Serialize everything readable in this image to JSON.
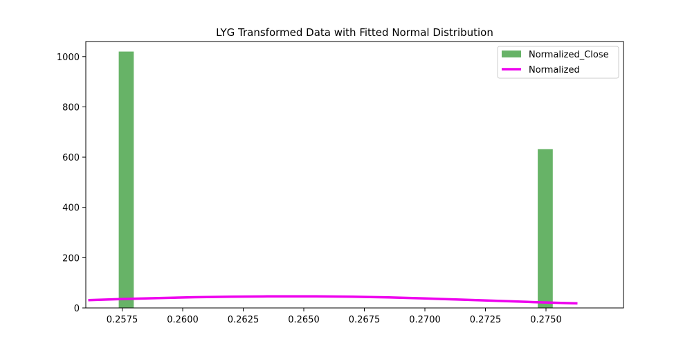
{
  "chart_data": {
    "type": "bar",
    "title": "LYG Transformed Data with Fitted Normal Distribution",
    "xlabel": "",
    "ylabel": "",
    "xlim": [
      0.256,
      0.2782
    ],
    "ylim": [
      0,
      1060
    ],
    "xticks": [
      0.2575,
      0.26,
      0.2625,
      0.265,
      0.2675,
      0.27,
      0.2725,
      0.275
    ],
    "xtick_labels": [
      "0.2575",
      "0.2600",
      "0.2625",
      "0.2650",
      "0.2675",
      "0.2700",
      "0.2725",
      "0.2750"
    ],
    "yticks": [
      0,
      200,
      400,
      600,
      800,
      1000
    ],
    "ytick_labels": [
      "0",
      "200",
      "400",
      "600",
      "800",
      "1000"
    ],
    "grid": false,
    "legend_position": "top-right",
    "histogram": {
      "name": "Normalized_Close",
      "color": "#4ca64c",
      "opacity": 0.85,
      "bars": [
        {
          "x0": 0.25736,
          "x1": 0.25798,
          "value": 1020
        },
        {
          "x0": 0.27466,
          "x1": 0.27528,
          "value": 632
        }
      ]
    },
    "curve": {
      "name": "Normalized",
      "color": "#ee00ee",
      "x": [
        0.2561,
        0.2575,
        0.259,
        0.2605,
        0.262,
        0.2635,
        0.2645,
        0.2655,
        0.267,
        0.2685,
        0.27,
        0.2715,
        0.273,
        0.2745,
        0.276,
        0.2763
      ],
      "y": [
        31,
        35.5,
        39.5,
        42.8,
        45.0,
        46.1,
        46.3,
        46.0,
        44.6,
        41.8,
        37.8,
        33.1,
        28.0,
        23.2,
        18.9,
        18.2
      ]
    }
  }
}
